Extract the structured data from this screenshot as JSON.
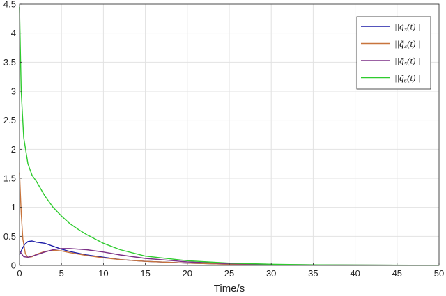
{
  "chart_data": {
    "type": "line",
    "title": "",
    "xlabel": "Time/s",
    "ylabel": "",
    "xlim": [
      0,
      50
    ],
    "ylim": [
      0,
      4.5
    ],
    "x_ticks": [
      "0",
      "5",
      "10",
      "15",
      "20",
      "25",
      "30",
      "35",
      "40",
      "45",
      "50"
    ],
    "y_ticks": [
      "0",
      "0.5",
      "1",
      "1.5",
      "2",
      "2.5",
      "3",
      "3.5",
      "4",
      "4.5"
    ],
    "grid": true,
    "legend_position": "top-right",
    "series": [
      {
        "name": "||q̃₃(t)||",
        "color": "#1a1aa6",
        "points": [
          [
            0,
            0.18
          ],
          [
            0.3,
            0.28
          ],
          [
            0.6,
            0.36
          ],
          [
            1,
            0.41
          ],
          [
            1.5,
            0.42
          ],
          [
            2,
            0.4
          ],
          [
            3,
            0.38
          ],
          [
            4,
            0.33
          ],
          [
            5,
            0.28
          ],
          [
            6,
            0.24
          ],
          [
            8,
            0.18
          ],
          [
            10,
            0.14
          ],
          [
            12,
            0.1
          ],
          [
            15,
            0.07
          ],
          [
            20,
            0.04
          ],
          [
            25,
            0.02
          ],
          [
            30,
            0.01
          ],
          [
            40,
            0.005
          ],
          [
            50,
            0.002
          ]
        ]
      },
      {
        "name": "||q̃₄(t)||",
        "color": "#c8743c",
        "points": [
          [
            0,
            1.6
          ],
          [
            0.2,
            0.9
          ],
          [
            0.4,
            0.45
          ],
          [
            0.7,
            0.2
          ],
          [
            1,
            0.14
          ],
          [
            1.5,
            0.15
          ],
          [
            2,
            0.19
          ],
          [
            3,
            0.24
          ],
          [
            4,
            0.26
          ],
          [
            5,
            0.25
          ],
          [
            6,
            0.22
          ],
          [
            8,
            0.17
          ],
          [
            10,
            0.13
          ],
          [
            12,
            0.1
          ],
          [
            15,
            0.07
          ],
          [
            20,
            0.04
          ],
          [
            25,
            0.02
          ],
          [
            30,
            0.01
          ],
          [
            40,
            0.005
          ],
          [
            50,
            0.002
          ]
        ]
      },
      {
        "name": "||q̃₅(t)||",
        "color": "#7b2f86",
        "points": [
          [
            0,
            0.25
          ],
          [
            0.5,
            0.15
          ],
          [
            1,
            0.14
          ],
          [
            2,
            0.18
          ],
          [
            3,
            0.23
          ],
          [
            4,
            0.27
          ],
          [
            5,
            0.29
          ],
          [
            6,
            0.29
          ],
          [
            7,
            0.28
          ],
          [
            8,
            0.27
          ],
          [
            10,
            0.23
          ],
          [
            12,
            0.18
          ],
          [
            15,
            0.12
          ],
          [
            20,
            0.06
          ],
          [
            25,
            0.03
          ],
          [
            30,
            0.015
          ],
          [
            40,
            0.005
          ],
          [
            50,
            0.002
          ]
        ]
      },
      {
        "name": "||q̃₆(t)||",
        "color": "#2ecb2e",
        "points": [
          [
            0,
            4.45
          ],
          [
            0.2,
            3.0
          ],
          [
            0.5,
            2.2
          ],
          [
            1,
            1.75
          ],
          [
            1.5,
            1.55
          ],
          [
            2,
            1.45
          ],
          [
            3,
            1.2
          ],
          [
            4,
            1.0
          ],
          [
            5,
            0.85
          ],
          [
            6,
            0.72
          ],
          [
            7,
            0.62
          ],
          [
            8,
            0.53
          ],
          [
            10,
            0.38
          ],
          [
            12,
            0.27
          ],
          [
            15,
            0.16
          ],
          [
            20,
            0.08
          ],
          [
            25,
            0.04
          ],
          [
            30,
            0.02
          ],
          [
            35,
            0.01
          ],
          [
            40,
            0.006
          ],
          [
            50,
            0.002
          ]
        ]
      }
    ]
  }
}
